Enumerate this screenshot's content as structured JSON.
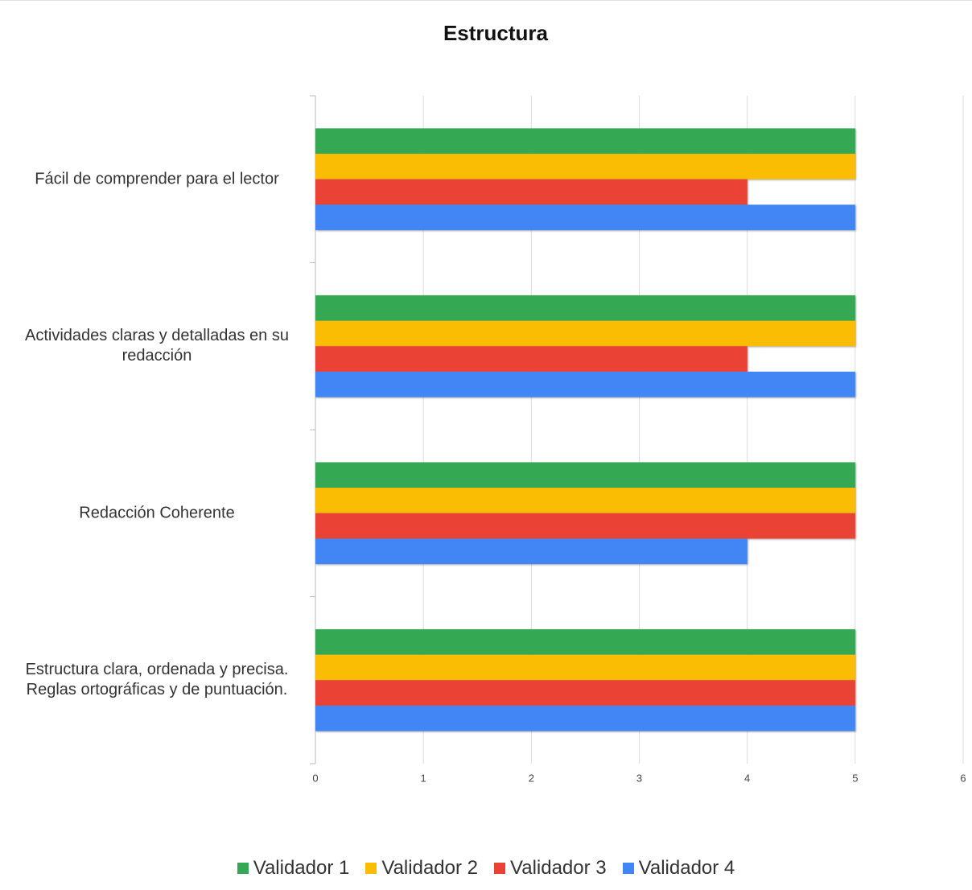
{
  "chart_data": {
    "type": "bar",
    "orientation": "horizontal",
    "title": "Estructura",
    "categories": [
      "Fácil de comprender para el lector",
      "Actividades claras y detalladas en su redacción",
      "Redacción Coherente",
      "Estructura clara, ordenada y precisa. Reglas ortográficas y de puntuación."
    ],
    "series": [
      {
        "name": "Validador 1",
        "color": "#34a853",
        "values": [
          5,
          5,
          5,
          5
        ]
      },
      {
        "name": "Validador 2",
        "color": "#fbbc04",
        "values": [
          5,
          5,
          5,
          5
        ]
      },
      {
        "name": "Validador 3",
        "color": "#ea4335",
        "values": [
          4,
          4,
          5,
          5
        ]
      },
      {
        "name": "Validador 4",
        "color": "#4285f4",
        "values": [
          5,
          5,
          4,
          5
        ]
      }
    ],
    "xlim": [
      0,
      6
    ],
    "xticks": [
      0,
      1,
      2,
      3,
      4,
      5,
      6
    ],
    "grid": true,
    "legend": "bottom"
  }
}
